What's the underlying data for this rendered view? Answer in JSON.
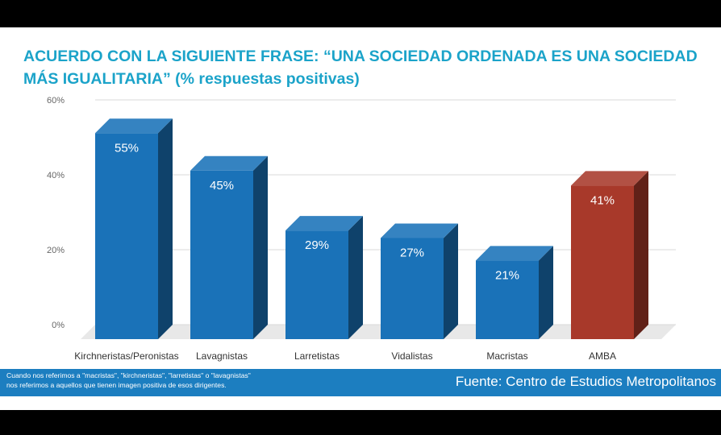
{
  "title": {
    "line1": "ACUERDO CON LA SIGUIENTE FRASE: “UNA SOCIEDAD ORDENADA ES UNA SOCIEDAD",
    "line2": "MÁS IGUALITARIA” (% respuestas positivas)"
  },
  "chart_data": {
    "type": "bar",
    "categories": [
      "Kirchneristas/Peronistas",
      "Lavagnistas",
      "Larretistas",
      "Vidalistas",
      "Macristas",
      "AMBA"
    ],
    "values": [
      55,
      45,
      29,
      27,
      21,
      41
    ],
    "data_labels": [
      "55%",
      "45%",
      "29%",
      "27%",
      "21%",
      "41%"
    ],
    "ylim": [
      0,
      60
    ],
    "yticks": [
      0,
      20,
      40,
      60
    ],
    "ytick_labels": [
      "0%",
      "20%",
      "40%",
      "60%"
    ],
    "grid": true,
    "style": "3d",
    "colors": {
      "default": "#1a72b8",
      "highlight": "#a8392a",
      "highlight_category": "AMBA"
    }
  },
  "footer": {
    "note_line1": "Cuando nos referimos a \"macristas\", \"kirchneristas\", \"larretistas\" o \"lavagnistas\"",
    "note_line2": "nos referimos a aquellos que tienen imagen positiva de esos dirigentes.",
    "source": "Fuente: Centro de Estudios Metropolitanos"
  }
}
